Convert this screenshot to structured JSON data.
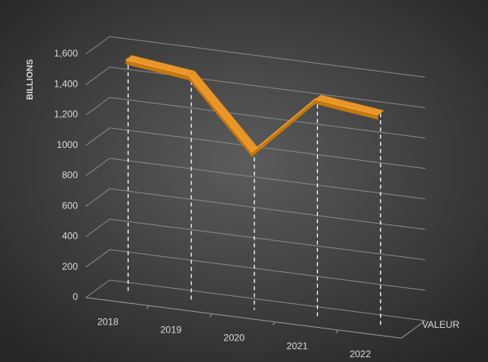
{
  "chart_data": {
    "type": "line3d",
    "y_axis_label": "BILLIONS",
    "categories": [
      "2018",
      "2019",
      "2020",
      "2021",
      "2022"
    ],
    "series": [
      {
        "name": "VALEUR",
        "color": "#f0a030",
        "values": [
          1550,
          1500,
          1050,
          1450,
          1400
        ]
      }
    ],
    "ylim": [
      0,
      1600
    ],
    "yticks": [
      0,
      200,
      400,
      600,
      800,
      1000,
      {
        "value": 1200,
        "label": "1,200"
      },
      {
        "value": 1400,
        "label": "1,400"
      },
      {
        "value": 1600,
        "label": "1,600"
      }
    ],
    "grid": true
  }
}
